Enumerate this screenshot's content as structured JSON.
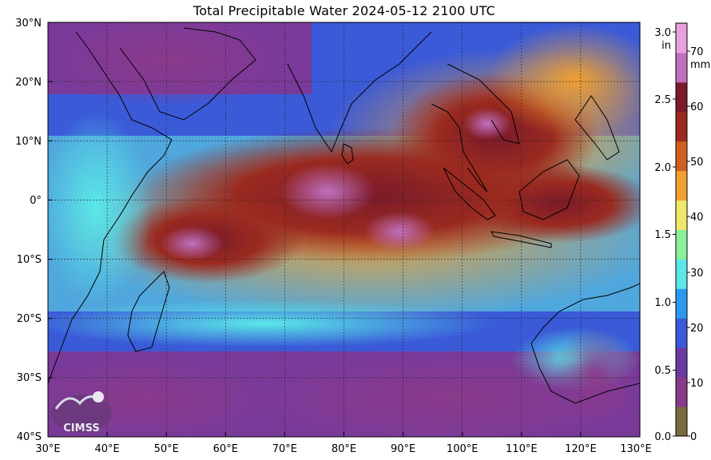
{
  "title": "Total Precipitable Water  2024-05-12 2100 UTC",
  "map": {
    "lat_labels": [
      "30°N",
      "20°N",
      "10°N",
      "0°",
      "10°S",
      "20°S",
      "30°S",
      "40°S"
    ],
    "lon_labels": [
      "30°E",
      "40°E",
      "50°E",
      "60°E",
      "70°E",
      "80°E",
      "90°E",
      "100°E",
      "110°E",
      "120°E",
      "130°E"
    ],
    "lat_range": [
      -40,
      30
    ],
    "lon_range": [
      30,
      130
    ],
    "gridlines": true
  },
  "colorbar": {
    "unit_in": "in",
    "unit_mm": "mm",
    "in_labels": [
      "0.0",
      "0.5",
      "1.0",
      "1.5",
      "2.0",
      "2.5",
      "3.0"
    ],
    "mm_labels": [
      "0",
      "10",
      "20",
      "30",
      "40",
      "50",
      "60",
      "70"
    ],
    "colors": [
      "#7a6a3e",
      "#8a3a8a",
      "#6a3aa0",
      "#3a5ad8",
      "#2a9af0",
      "#5ae8e8",
      "#8af09a",
      "#f0e86a",
      "#f0a030",
      "#d06020",
      "#9a2a20",
      "#7a1a2a",
      "#c070c0",
      "#e8a0e0"
    ]
  },
  "logo": {
    "text": "CIMSS"
  }
}
